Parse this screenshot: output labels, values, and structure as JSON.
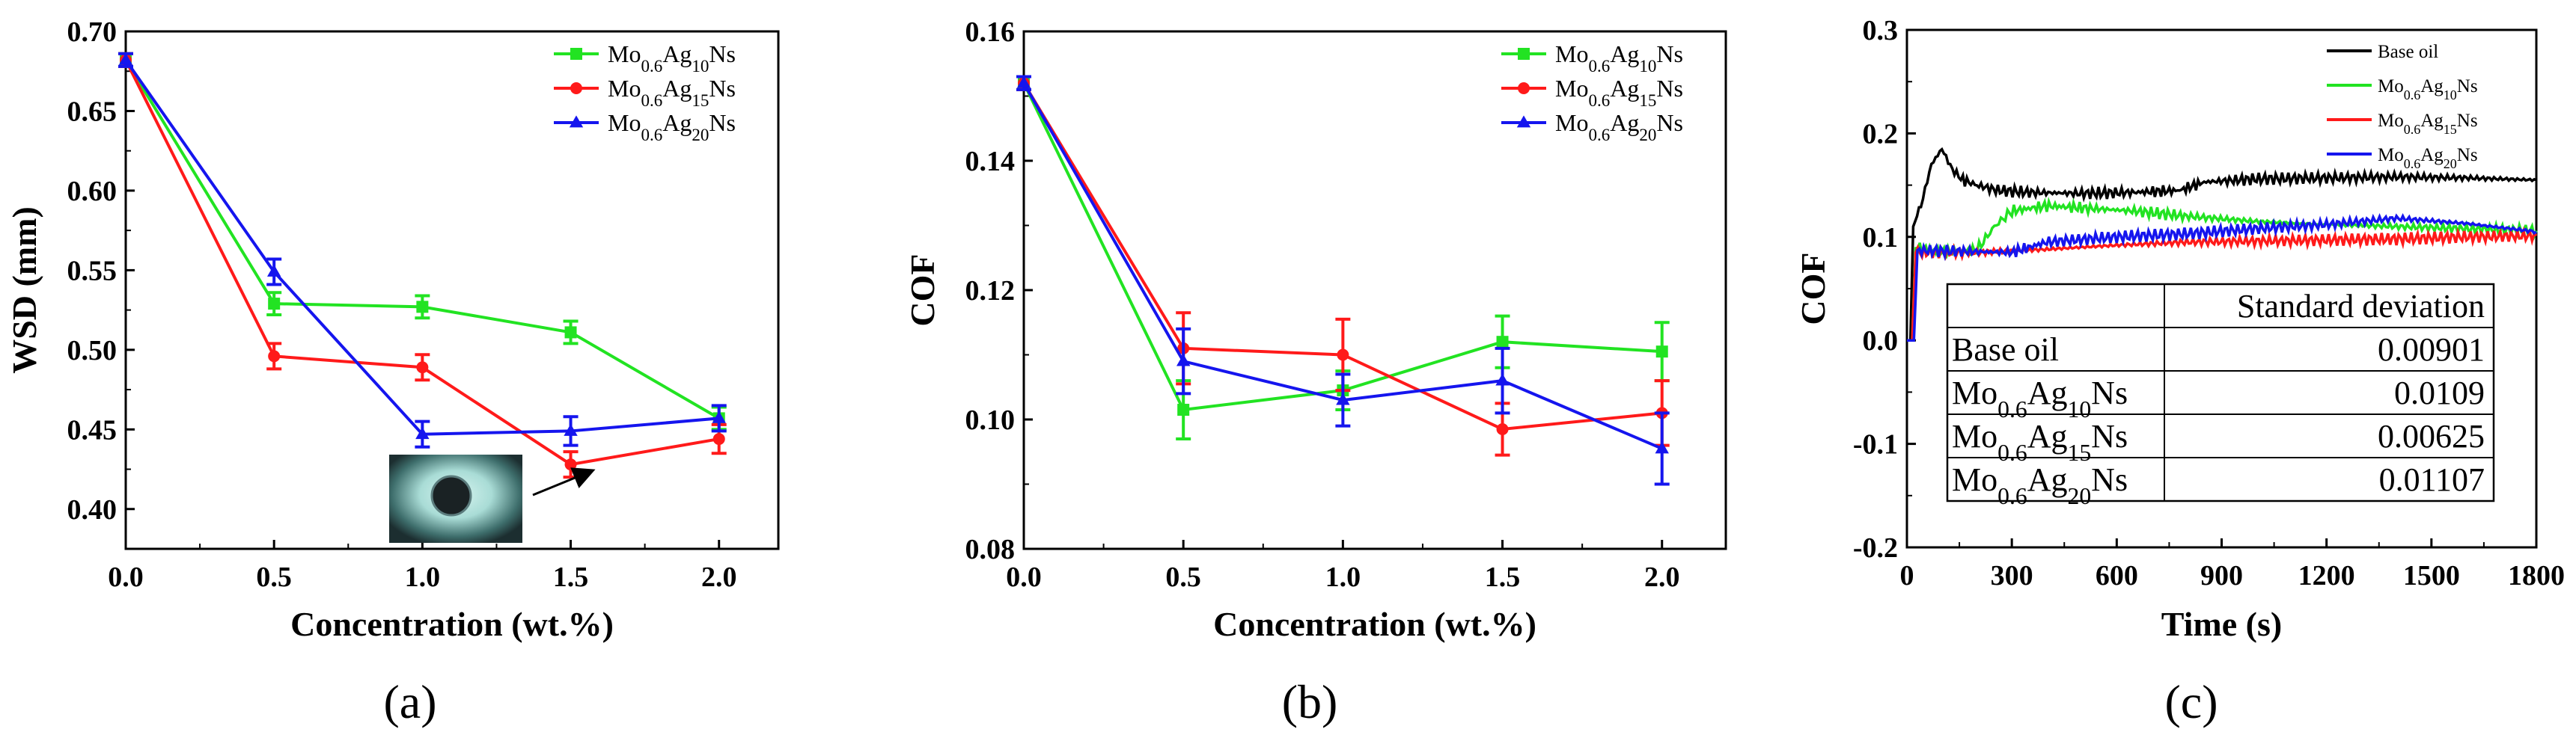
{
  "panel_labels": [
    "(a)",
    "(b)",
    "(c)"
  ],
  "colors": {
    "Mo0.6Ag10Ns": "#22e322",
    "Mo0.6Ag15Ns": "#ff1a1a",
    "Mo0.6Ag20Ns": "#1515ee",
    "Base oil": "#000000"
  },
  "chart_data": [
    {
      "type": "line",
      "panel": "(a)",
      "xlabel": "Concentration (wt.%)",
      "ylabel": "WSD (mm)",
      "xlim": [
        0.0,
        2.2
      ],
      "ylim": [
        0.375,
        0.7
      ],
      "xticks": [
        "0.0",
        "0.5",
        "1.0",
        "1.5",
        "2.0"
      ],
      "yticks": [
        "0.40",
        "0.45",
        "0.50",
        "0.55",
        "0.60",
        "0.65",
        "0.70"
      ],
      "legend_position": "top-right",
      "x": [
        0.0,
        0.5,
        1.0,
        1.5,
        2.0
      ],
      "series": [
        {
          "name": [
            "Mo",
            "0.6",
            "Ag",
            "10",
            "Ns"
          ],
          "color": "#22e322",
          "marker": "square",
          "values": [
            0.682,
            0.529,
            0.527,
            0.511,
            0.457
          ],
          "errors": [
            0.004,
            0.007,
            0.007,
            0.007,
            0.007
          ]
        },
        {
          "name": [
            "Mo",
            "0.6",
            "Ag",
            "15",
            "Ns"
          ],
          "color": "#ff1a1a",
          "marker": "circle",
          "values": [
            0.682,
            0.496,
            0.489,
            0.428,
            0.444
          ],
          "errors": [
            0.004,
            0.008,
            0.008,
            0.008,
            0.009
          ]
        },
        {
          "name": [
            "Mo",
            "0.6",
            "Ag",
            "20",
            "Ns"
          ],
          "color": "#1515ee",
          "marker": "triangle",
          "values": [
            0.682,
            0.549,
            0.447,
            0.449,
            0.457
          ],
          "errors": [
            0.004,
            0.008,
            0.008,
            0.009,
            0.008
          ]
        }
      ],
      "inset_image": "wear-scar-micrograph"
    },
    {
      "type": "line",
      "panel": "(b)",
      "xlabel": "Concentration (wt.%)",
      "ylabel": "COF",
      "xlim": [
        0.0,
        2.2
      ],
      "ylim": [
        0.08,
        0.16
      ],
      "xticks": [
        "0.0",
        "0.5",
        "1.0",
        "1.5",
        "2.0"
      ],
      "yticks": [
        "0.08",
        "0.10",
        "0.12",
        "0.14",
        "0.16"
      ],
      "legend_position": "top-right",
      "x": [
        0.0,
        0.5,
        1.0,
        1.5,
        2.0
      ],
      "series": [
        {
          "name": [
            "Mo",
            "0.6",
            "Ag",
            "10",
            "Ns"
          ],
          "color": "#22e322",
          "marker": "square",
          "values": [
            0.152,
            0.1015,
            0.1045,
            0.112,
            0.1105
          ],
          "errors": [
            0.001,
            0.0045,
            0.003,
            0.004,
            0.0045
          ]
        },
        {
          "name": [
            "Mo",
            "0.6",
            "Ag",
            "15",
            "Ns"
          ],
          "color": "#ff1a1a",
          "marker": "circle",
          "values": [
            0.152,
            0.111,
            0.11,
            0.0985,
            0.101
          ],
          "errors": [
            0.001,
            0.0055,
            0.0055,
            0.004,
            0.005
          ]
        },
        {
          "name": [
            "Mo",
            "0.6",
            "Ag",
            "20",
            "Ns"
          ],
          "color": "#1515ee",
          "marker": "triangle",
          "values": [
            0.152,
            0.109,
            0.103,
            0.106,
            0.0955
          ],
          "errors": [
            0.001,
            0.005,
            0.004,
            0.005,
            0.0055
          ]
        }
      ]
    },
    {
      "type": "line",
      "panel": "(c)",
      "xlabel": "Time (s)",
      "ylabel": "COF",
      "xlim": [
        0,
        1800
      ],
      "ylim": [
        -0.2,
        0.3
      ],
      "xticks": [
        "0",
        "300",
        "600",
        "900",
        "1200",
        "1500",
        "1800"
      ],
      "yticks": [
        "-0.2",
        "-0.1",
        "0.0",
        "0.1",
        "0.2",
        "0.3"
      ],
      "legend_position": "top-right",
      "series": [
        {
          "name": [
            "Base oil"
          ],
          "color": "#000000",
          "points": [
            [
              0,
              0
            ],
            [
              10,
              0.0
            ],
            [
              18,
              0.11
            ],
            [
              40,
              0.13
            ],
            [
              70,
              0.17
            ],
            [
              100,
              0.185
            ],
            [
              130,
              0.165
            ],
            [
              160,
              0.155
            ],
            [
              200,
              0.15
            ],
            [
              260,
              0.145
            ],
            [
              350,
              0.143
            ],
            [
              500,
              0.142
            ],
            [
              650,
              0.143
            ],
            [
              780,
              0.145
            ],
            [
              850,
              0.153
            ],
            [
              1000,
              0.156
            ],
            [
              1200,
              0.157
            ],
            [
              1400,
              0.158
            ],
            [
              1600,
              0.157
            ],
            [
              1800,
              0.155
            ]
          ]
        },
        {
          "name": [
            "Mo",
            "0.6",
            "Ag",
            "10",
            "Ns"
          ],
          "color": "#22e322",
          "points": [
            [
              0,
              0
            ],
            [
              15,
              0.0
            ],
            [
              25,
              0.09
            ],
            [
              100,
              0.085
            ],
            [
              200,
              0.087
            ],
            [
              250,
              0.11
            ],
            [
              300,
              0.125
            ],
            [
              400,
              0.13
            ],
            [
              500,
              0.128
            ],
            [
              650,
              0.125
            ],
            [
              800,
              0.12
            ],
            [
              1000,
              0.115
            ],
            [
              1200,
              0.112
            ],
            [
              1400,
              0.11
            ],
            [
              1600,
              0.108
            ],
            [
              1800,
              0.106
            ]
          ]
        },
        {
          "name": [
            "Mo",
            "0.6",
            "Ag",
            "15",
            "Ns"
          ],
          "color": "#ff1a1a",
          "points": [
            [
              0,
              0
            ],
            [
              15,
              0.0
            ],
            [
              25,
              0.085
            ],
            [
              200,
              0.085
            ],
            [
              400,
              0.088
            ],
            [
              600,
              0.092
            ],
            [
              800,
              0.095
            ],
            [
              1000,
              0.096
            ],
            [
              1200,
              0.097
            ],
            [
              1400,
              0.098
            ],
            [
              1600,
              0.1
            ],
            [
              1800,
              0.101
            ]
          ]
        },
        {
          "name": [
            "Mo",
            "0.6",
            "Ag",
            "20",
            "Ns"
          ],
          "color": "#1515ee",
          "points": [
            [
              0,
              0
            ],
            [
              20,
              0.0
            ],
            [
              30,
              0.087
            ],
            [
              300,
              0.085
            ],
            [
              400,
              0.095
            ],
            [
              600,
              0.1
            ],
            [
              800,
              0.103
            ],
            [
              1000,
              0.108
            ],
            [
              1200,
              0.112
            ],
            [
              1400,
              0.118
            ],
            [
              1600,
              0.113
            ],
            [
              1800,
              0.105
            ]
          ]
        }
      ],
      "table": {
        "header": [
          "",
          "Standard deviation"
        ],
        "rows": [
          {
            "label": [
              "Base oil"
            ],
            "value": "0.00901"
          },
          {
            "label": [
              "Mo",
              "0.6",
              "Ag",
              "10",
              "Ns"
            ],
            "value": "0.0109"
          },
          {
            "label": [
              "Mo",
              "0.6",
              "Ag",
              "15",
              "Ns"
            ],
            "value": "0.00625"
          },
          {
            "label": [
              "Mo",
              "0.6",
              "Ag",
              "20",
              "Ns"
            ],
            "value": "0.01107"
          }
        ]
      }
    }
  ]
}
